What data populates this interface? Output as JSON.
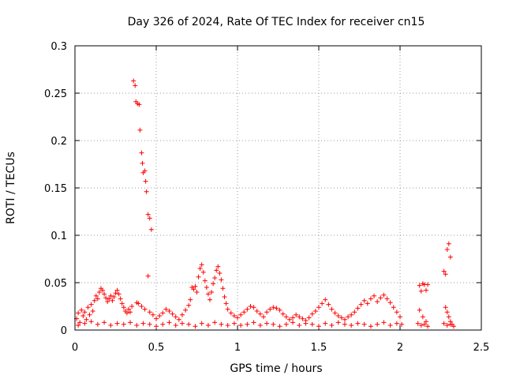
{
  "chart_data": {
    "type": "scatter",
    "title": "Day 326 of 2024, Rate Of TEC Index for receiver cn15",
    "xlabel": "GPS time / hours",
    "ylabel": "ROTI / TECUs",
    "xlim": [
      0,
      2.5
    ],
    "ylim": [
      0,
      0.3
    ],
    "xticks": [
      0,
      0.5,
      1,
      1.5,
      2,
      2.5
    ],
    "xtick_labels": [
      "0",
      "0.5",
      "1",
      "1.5",
      "2",
      "2.5"
    ],
    "yticks": [
      0,
      0.05,
      0.1,
      0.15,
      0.2,
      0.25,
      0.3
    ],
    "ytick_labels": [
      "0",
      "0.05",
      "0.1",
      "0.15",
      "0.2",
      "0.25",
      "0.3"
    ],
    "grid": true,
    "marker": "+",
    "marker_color": "#ff0000",
    "series": [
      {
        "name": "ROTI",
        "points": [
          [
            0.01,
            0.012
          ],
          [
            0.02,
            0.018
          ],
          [
            0.03,
            0.008
          ],
          [
            0.04,
            0.021
          ],
          [
            0.05,
            0.015
          ],
          [
            0.06,
            0.019
          ],
          [
            0.07,
            0.011
          ],
          [
            0.08,
            0.024
          ],
          [
            0.09,
            0.016
          ],
          [
            0.1,
            0.027
          ],
          [
            0.11,
            0.02
          ],
          [
            0.12,
            0.031
          ],
          [
            0.13,
            0.036
          ],
          [
            0.14,
            0.033
          ],
          [
            0.15,
            0.04
          ],
          [
            0.16,
            0.044
          ],
          [
            0.17,
            0.042
          ],
          [
            0.18,
            0.038
          ],
          [
            0.19,
            0.034
          ],
          [
            0.2,
            0.03
          ],
          [
            0.21,
            0.033
          ],
          [
            0.22,
            0.036
          ],
          [
            0.23,
            0.031
          ],
          [
            0.24,
            0.035
          ],
          [
            0.25,
            0.039
          ],
          [
            0.26,
            0.042
          ],
          [
            0.27,
            0.038
          ],
          [
            0.28,
            0.033
          ],
          [
            0.29,
            0.028
          ],
          [
            0.3,
            0.024
          ],
          [
            0.31,
            0.02
          ],
          [
            0.32,
            0.018
          ],
          [
            0.33,
            0.022
          ],
          [
            0.34,
            0.019
          ],
          [
            0.35,
            0.025
          ],
          [
            0.36,
            0.263
          ],
          [
            0.37,
            0.258
          ],
          [
            0.375,
            0.241
          ],
          [
            0.385,
            0.239
          ],
          [
            0.395,
            0.238
          ],
          [
            0.4,
            0.211
          ],
          [
            0.41,
            0.187
          ],
          [
            0.415,
            0.176
          ],
          [
            0.42,
            0.166
          ],
          [
            0.43,
            0.168
          ],
          [
            0.435,
            0.157
          ],
          [
            0.44,
            0.146
          ],
          [
            0.45,
            0.122
          ],
          [
            0.46,
            0.118
          ],
          [
            0.47,
            0.106
          ],
          [
            0.45,
            0.057
          ],
          [
            0.38,
            0.029
          ],
          [
            0.39,
            0.028
          ],
          [
            0.41,
            0.025
          ],
          [
            0.43,
            0.022
          ],
          [
            0.46,
            0.019
          ],
          [
            0.48,
            0.016
          ],
          [
            0.5,
            0.012
          ],
          [
            0.52,
            0.015
          ],
          [
            0.54,
            0.018
          ],
          [
            0.56,
            0.022
          ],
          [
            0.58,
            0.02
          ],
          [
            0.6,
            0.017
          ],
          [
            0.62,
            0.014
          ],
          [
            0.64,
            0.011
          ],
          [
            0.66,
            0.016
          ],
          [
            0.68,
            0.021
          ],
          [
            0.7,
            0.026
          ],
          [
            0.71,
            0.032
          ],
          [
            0.72,
            0.045
          ],
          [
            0.73,
            0.043
          ],
          [
            0.74,
            0.046
          ],
          [
            0.75,
            0.04
          ],
          [
            0.76,
            0.056
          ],
          [
            0.77,
            0.065
          ],
          [
            0.78,
            0.069
          ],
          [
            0.79,
            0.061
          ],
          [
            0.8,
            0.052
          ],
          [
            0.81,
            0.045
          ],
          [
            0.82,
            0.038
          ],
          [
            0.83,
            0.032
          ],
          [
            0.84,
            0.04
          ],
          [
            0.85,
            0.049
          ],
          [
            0.86,
            0.055
          ],
          [
            0.87,
            0.063
          ],
          [
            0.88,
            0.067
          ],
          [
            0.89,
            0.06
          ],
          [
            0.9,
            0.053
          ],
          [
            0.91,
            0.044
          ],
          [
            0.92,
            0.035
          ],
          [
            0.93,
            0.028
          ],
          [
            0.94,
            0.022
          ],
          [
            0.96,
            0.018
          ],
          [
            0.98,
            0.015
          ],
          [
            1.0,
            0.013
          ],
          [
            1.02,
            0.016
          ],
          [
            1.04,
            0.019
          ],
          [
            1.06,
            0.022
          ],
          [
            1.08,
            0.025
          ],
          [
            1.1,
            0.024
          ],
          [
            1.12,
            0.02
          ],
          [
            1.14,
            0.017
          ],
          [
            1.16,
            0.014
          ],
          [
            1.18,
            0.019
          ],
          [
            1.2,
            0.022
          ],
          [
            1.22,
            0.024
          ],
          [
            1.24,
            0.023
          ],
          [
            1.26,
            0.021
          ],
          [
            1.28,
            0.017
          ],
          [
            1.3,
            0.014
          ],
          [
            1.32,
            0.011
          ],
          [
            1.34,
            0.013
          ],
          [
            1.36,
            0.016
          ],
          [
            1.38,
            0.014
          ],
          [
            1.4,
            0.012
          ],
          [
            1.42,
            0.01
          ],
          [
            1.44,
            0.013
          ],
          [
            1.46,
            0.017
          ],
          [
            1.48,
            0.02
          ],
          [
            1.5,
            0.024
          ],
          [
            1.52,
            0.028
          ],
          [
            1.54,
            0.032
          ],
          [
            1.56,
            0.027
          ],
          [
            1.58,
            0.022
          ],
          [
            1.6,
            0.018
          ],
          [
            1.62,
            0.015
          ],
          [
            1.64,
            0.013
          ],
          [
            1.66,
            0.011
          ],
          [
            1.68,
            0.014
          ],
          [
            1.7,
            0.016
          ],
          [
            1.72,
            0.019
          ],
          [
            1.74,
            0.023
          ],
          [
            1.76,
            0.027
          ],
          [
            1.78,
            0.031
          ],
          [
            1.8,
            0.028
          ],
          [
            1.82,
            0.033
          ],
          [
            1.84,
            0.036
          ],
          [
            1.86,
            0.03
          ],
          [
            1.88,
            0.034
          ],
          [
            1.9,
            0.037
          ],
          [
            1.92,
            0.033
          ],
          [
            1.94,
            0.029
          ],
          [
            1.96,
            0.024
          ],
          [
            1.98,
            0.019
          ],
          [
            2.0,
            0.014
          ],
          [
            2.12,
            0.047
          ],
          [
            2.13,
            0.041
          ],
          [
            2.14,
            0.049
          ],
          [
            2.15,
            0.048
          ],
          [
            2.16,
            0.042
          ],
          [
            2.17,
            0.048
          ],
          [
            2.12,
            0.021
          ],
          [
            2.14,
            0.014
          ],
          [
            2.16,
            0.009
          ],
          [
            2.27,
            0.062
          ],
          [
            2.28,
            0.059
          ],
          [
            2.29,
            0.085
          ],
          [
            2.3,
            0.091
          ],
          [
            2.31,
            0.077
          ],
          [
            2.28,
            0.024
          ],
          [
            2.29,
            0.019
          ],
          [
            2.3,
            0.014
          ],
          [
            2.31,
            0.009
          ],
          [
            2.32,
            0.006
          ],
          [
            0.02,
            0.005
          ],
          [
            0.06,
            0.007
          ],
          [
            0.1,
            0.009
          ],
          [
            0.14,
            0.006
          ],
          [
            0.18,
            0.008
          ],
          [
            0.22,
            0.005
          ],
          [
            0.26,
            0.007
          ],
          [
            0.3,
            0.006
          ],
          [
            0.34,
            0.008
          ],
          [
            0.38,
            0.005
          ],
          [
            0.42,
            0.007
          ],
          [
            0.46,
            0.006
          ],
          [
            0.5,
            0.004
          ],
          [
            0.54,
            0.006
          ],
          [
            0.58,
            0.008
          ],
          [
            0.62,
            0.005
          ],
          [
            0.66,
            0.007
          ],
          [
            0.7,
            0.006
          ],
          [
            0.74,
            0.004
          ],
          [
            0.78,
            0.007
          ],
          [
            0.82,
            0.005
          ],
          [
            0.86,
            0.008
          ],
          [
            0.9,
            0.006
          ],
          [
            0.94,
            0.005
          ],
          [
            0.98,
            0.007
          ],
          [
            1.02,
            0.005
          ],
          [
            1.06,
            0.006
          ],
          [
            1.1,
            0.008
          ],
          [
            1.14,
            0.005
          ],
          [
            1.18,
            0.007
          ],
          [
            1.22,
            0.006
          ],
          [
            1.26,
            0.004
          ],
          [
            1.3,
            0.006
          ],
          [
            1.34,
            0.008
          ],
          [
            1.38,
            0.005
          ],
          [
            1.42,
            0.007
          ],
          [
            1.46,
            0.006
          ],
          [
            1.5,
            0.004
          ],
          [
            1.54,
            0.007
          ],
          [
            1.58,
            0.005
          ],
          [
            1.62,
            0.008
          ],
          [
            1.66,
            0.006
          ],
          [
            1.7,
            0.005
          ],
          [
            1.74,
            0.007
          ],
          [
            1.78,
            0.006
          ],
          [
            1.82,
            0.004
          ],
          [
            1.86,
            0.006
          ],
          [
            1.9,
            0.008
          ],
          [
            1.94,
            0.005
          ],
          [
            1.98,
            0.007
          ],
          [
            2.01,
            0.006
          ],
          [
            2.11,
            0.007
          ],
          [
            2.13,
            0.005
          ],
          [
            2.15,
            0.006
          ],
          [
            2.17,
            0.004
          ],
          [
            2.27,
            0.007
          ],
          [
            2.29,
            0.005
          ],
          [
            2.31,
            0.006
          ],
          [
            2.33,
            0.004
          ]
        ]
      }
    ]
  }
}
